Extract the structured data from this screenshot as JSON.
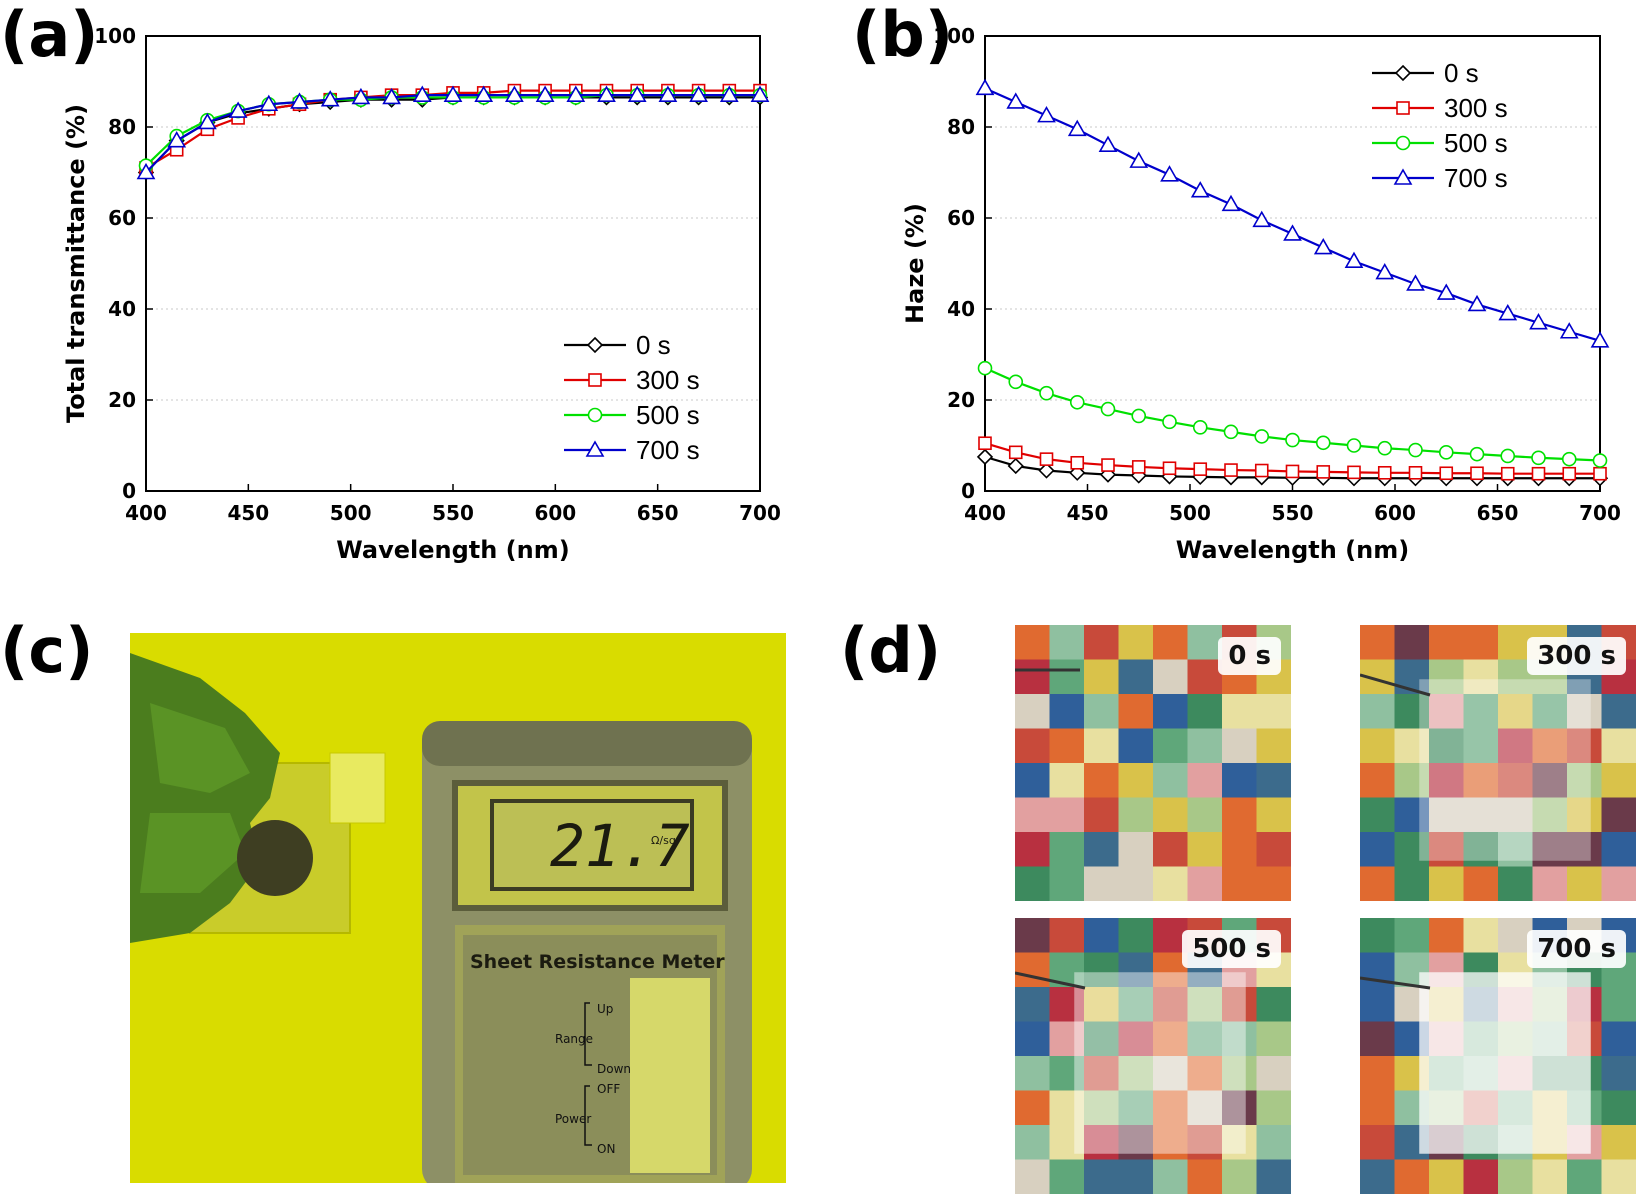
{
  "panels": {
    "a": "(a)",
    "b": "(b)",
    "c": "(c)",
    "d": "(d)"
  },
  "colors": {
    "0 s": "#000000",
    "300 s": "#e00000",
    "500 s": "#00e000",
    "700 s": "#0000cc"
  },
  "chart_data": [
    {
      "type": "line",
      "panel": "(a)",
      "title": "",
      "xlabel": "Wavelength (nm)",
      "ylabel": "Total transmittance (%)",
      "xlim": [
        400,
        700
      ],
      "ylim": [
        0,
        100
      ],
      "xticks": [
        "400",
        "450",
        "500",
        "550",
        "600",
        "650",
        "700"
      ],
      "yticks": [
        "0",
        "20",
        "40",
        "60",
        "80",
        "100"
      ],
      "grid": "horizontal dotted",
      "legend_position": "bottom-right",
      "x": [
        400,
        415,
        430,
        445,
        460,
        475,
        490,
        505,
        520,
        535,
        550,
        565,
        580,
        595,
        610,
        625,
        640,
        655,
        670,
        685,
        700
      ],
      "series": [
        {
          "name": "0 s",
          "marker": "diamond",
          "values": [
            70,
            77,
            81,
            83,
            84,
            85,
            85.5,
            86,
            86,
            86,
            86.5,
            86.5,
            86.5,
            86.5,
            86.5,
            86.5,
            86.5,
            86.5,
            86.5,
            86.5,
            86.5
          ]
        },
        {
          "name": "300 s",
          "marker": "square",
          "values": [
            71,
            75,
            79.5,
            82,
            84,
            85,
            86,
            86.5,
            87,
            87,
            87.5,
            87.5,
            88,
            88,
            88,
            88,
            88,
            88,
            88,
            88,
            88
          ]
        },
        {
          "name": "500 s",
          "marker": "circle",
          "values": [
            71.5,
            78,
            81.5,
            83.5,
            85,
            85.5,
            86,
            86,
            86.5,
            86.5,
            86.5,
            86.5,
            86.5,
            86.5,
            86.5,
            87,
            87,
            87,
            87,
            87,
            87
          ]
        },
        {
          "name": "700 s",
          "marker": "triangle",
          "values": [
            70,
            77,
            81,
            83.5,
            85,
            85.5,
            86,
            86.5,
            86.5,
            87,
            87,
            87,
            87,
            87,
            87,
            87,
            87,
            87,
            87,
            87,
            87
          ]
        }
      ]
    },
    {
      "type": "line",
      "panel": "(b)",
      "title": "",
      "xlabel": "Wavelength (nm)",
      "ylabel": "Haze (%)",
      "xlim": [
        400,
        700
      ],
      "ylim": [
        0,
        100
      ],
      "xticks": [
        "400",
        "450",
        "500",
        "550",
        "600",
        "650",
        "700"
      ],
      "yticks": [
        "0",
        "20",
        "40",
        "60",
        "80",
        "100"
      ],
      "grid": "horizontal dotted",
      "legend_position": "top-right",
      "x": [
        400,
        415,
        430,
        445,
        460,
        475,
        490,
        505,
        520,
        535,
        550,
        565,
        580,
        595,
        610,
        625,
        640,
        655,
        670,
        685,
        700
      ],
      "series": [
        {
          "name": "0 s",
          "marker": "diamond",
          "values": [
            7.5,
            5.5,
            4.5,
            4,
            3.6,
            3.4,
            3.2,
            3.1,
            3,
            3,
            2.9,
            2.9,
            2.8,
            2.8,
            2.8,
            2.8,
            2.8,
            2.8,
            2.8,
            2.8,
            2.8
          ]
        },
        {
          "name": "300 s",
          "marker": "square",
          "values": [
            10.5,
            8.5,
            7,
            6.2,
            5.7,
            5.3,
            5,
            4.8,
            4.6,
            4.5,
            4.3,
            4.2,
            4.1,
            4,
            4,
            3.9,
            3.9,
            3.8,
            3.8,
            3.8,
            3.8
          ]
        },
        {
          "name": "500 s",
          "marker": "circle",
          "values": [
            27,
            24,
            21.5,
            19.5,
            18,
            16.5,
            15.2,
            14,
            13,
            12,
            11.2,
            10.6,
            10,
            9.4,
            9,
            8.5,
            8.1,
            7.7,
            7.3,
            7,
            6.7
          ]
        },
        {
          "name": "700 s",
          "marker": "triangle",
          "values": [
            88.5,
            85.5,
            82.5,
            79.5,
            76,
            72.5,
            69.5,
            66,
            63,
            59.5,
            56.5,
            53.5,
            50.5,
            48,
            45.5,
            43.5,
            41,
            39,
            37,
            35,
            33
          ]
        }
      ]
    }
  ],
  "photo_c": {
    "meter_reading": "21.7",
    "meter_unit": "Ω/sq",
    "meter_title": "Sheet Resistance Meter",
    "range_label": "Range",
    "up_label": "Up",
    "down_label": "Down",
    "power_label": "Power",
    "off_label": "OFF",
    "on_label": "ON"
  },
  "photos_d": [
    "0 s",
    "300 s",
    "500 s",
    "700 s"
  ]
}
